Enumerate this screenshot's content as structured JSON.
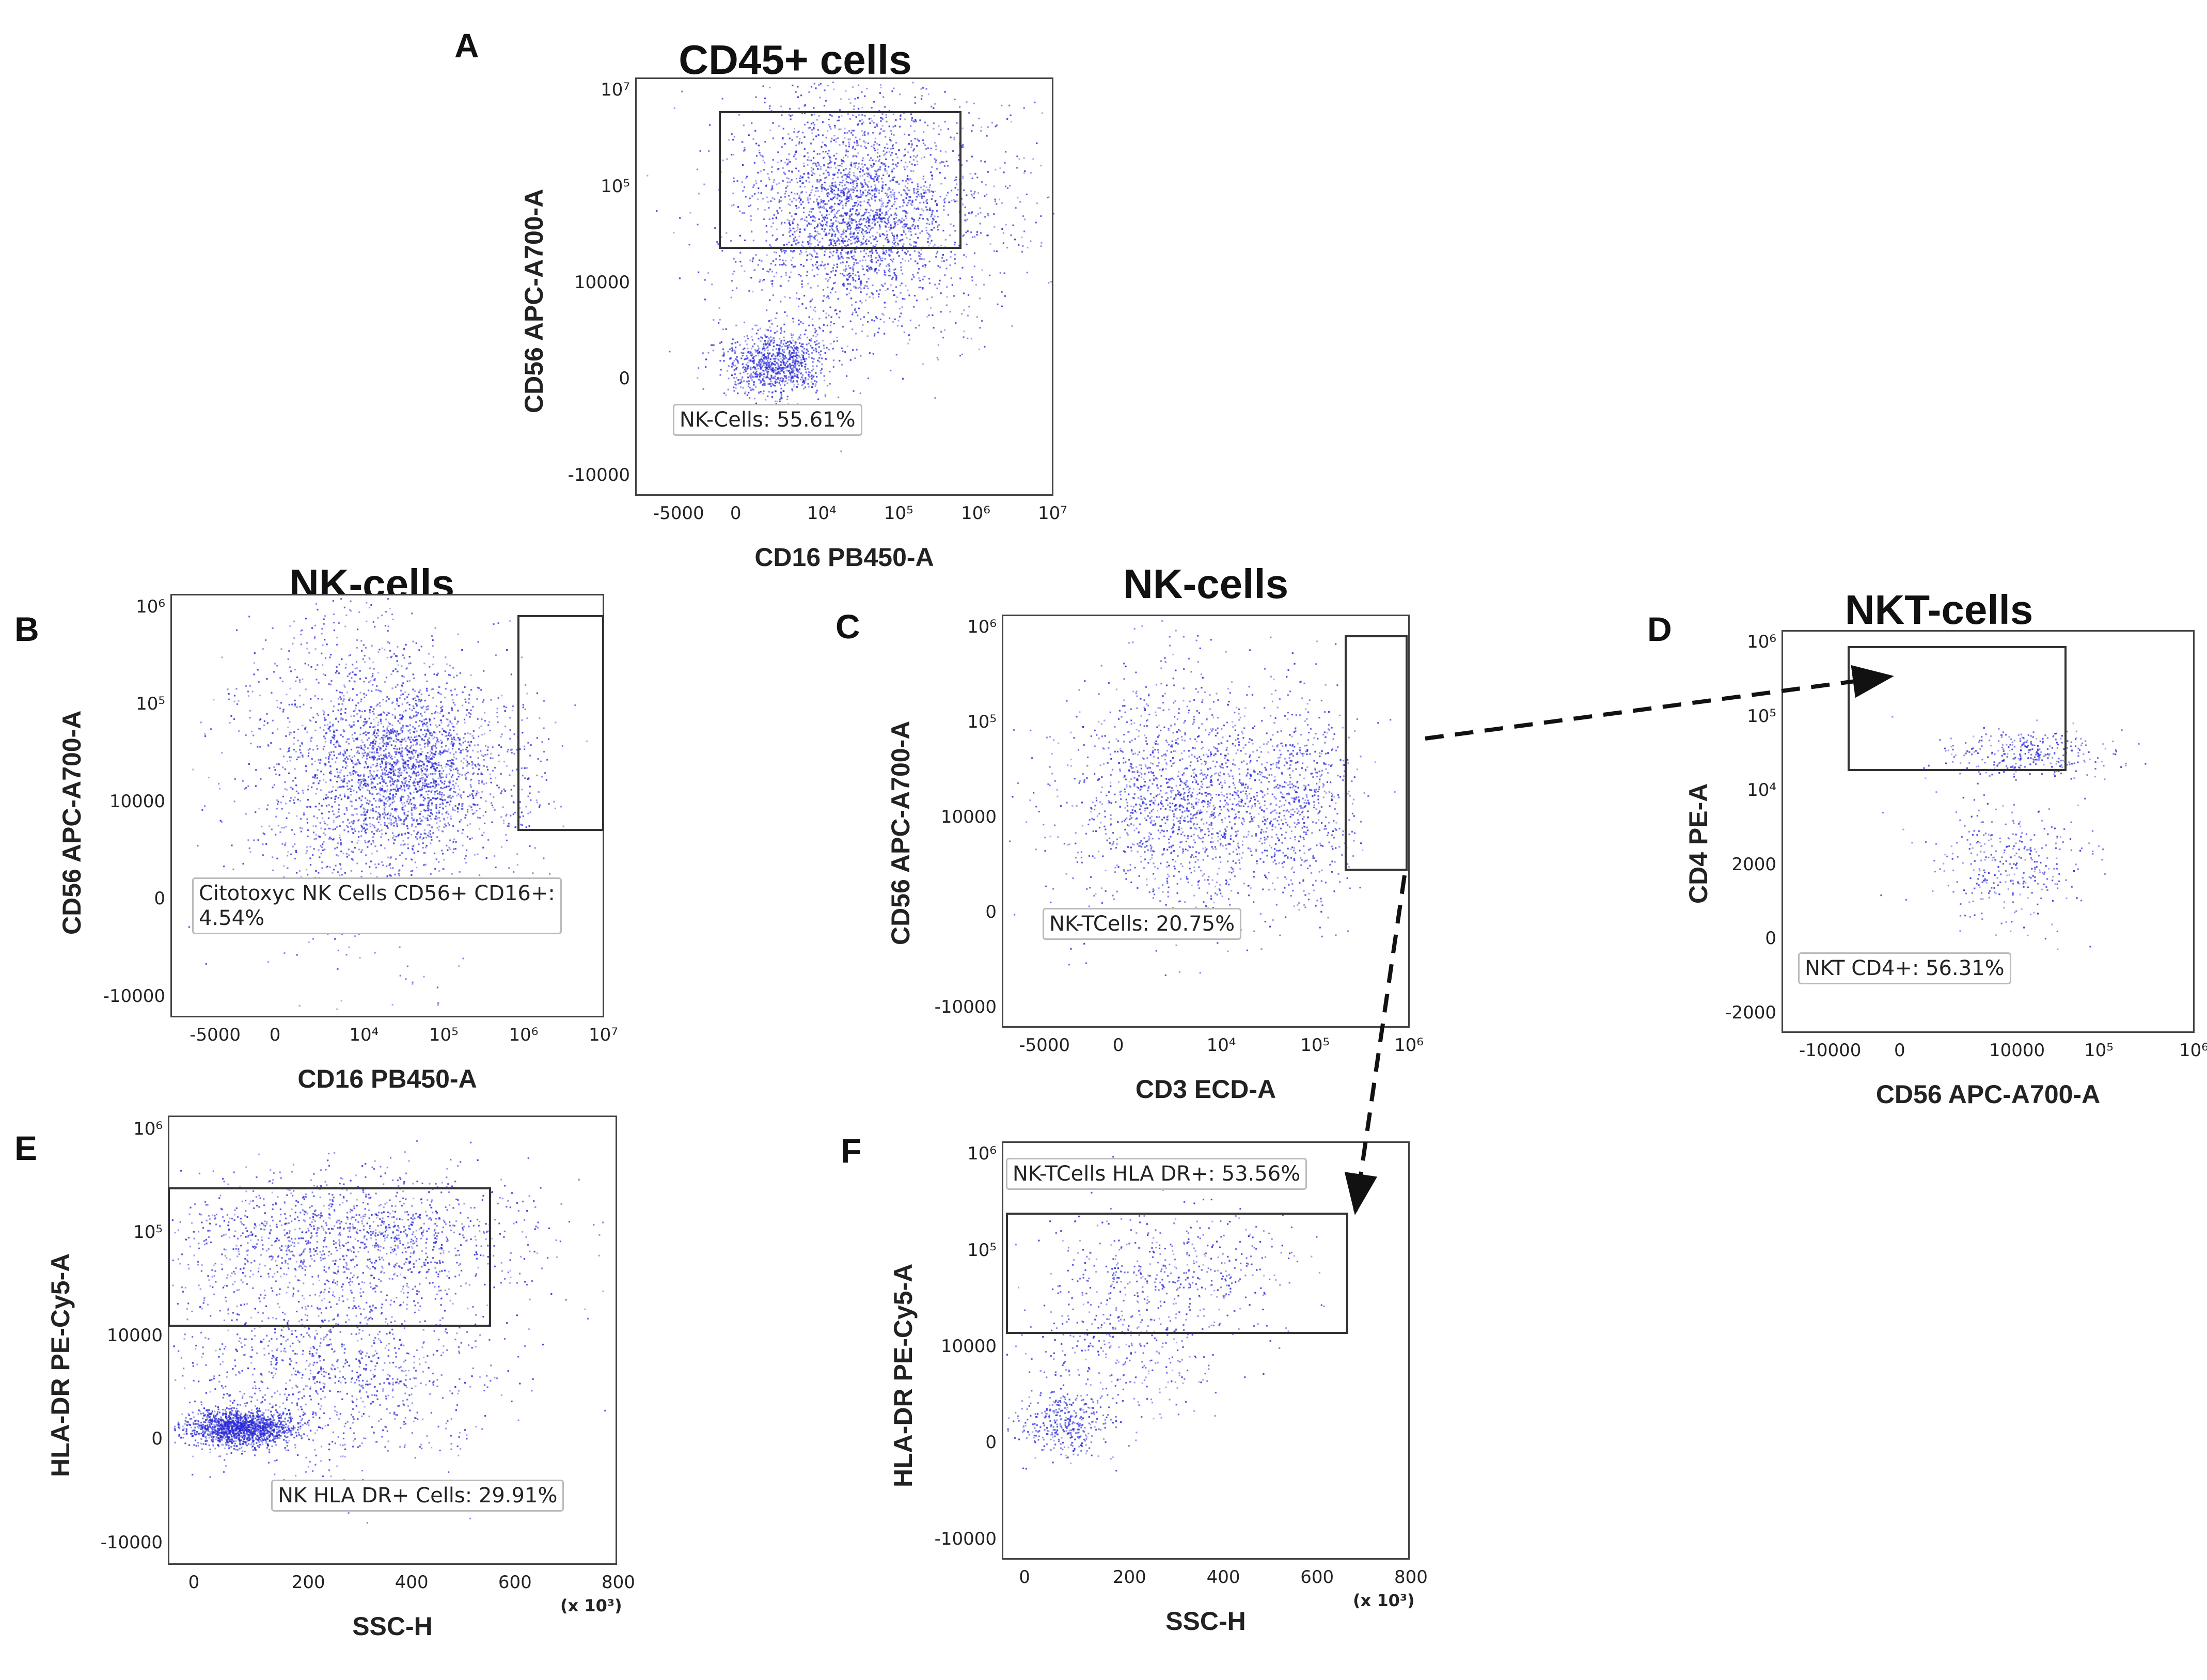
{
  "figure": {
    "panels": [
      {
        "letter": "A",
        "title": "CD45+ cells"
      },
      {
        "letter": "B",
        "title": "NK-cells"
      },
      {
        "letter": "C",
        "title": "NK-cells"
      },
      {
        "letter": "D",
        "title": "NKT-cells"
      },
      {
        "letter": "E",
        "title": ""
      },
      {
        "letter": "F",
        "title": ""
      }
    ],
    "colors": {
      "dots": "#2a2ad8",
      "gate": "#333333",
      "arrow": "#111111"
    }
  },
  "chart_data": [
    {
      "panel": "A",
      "type": "scatter",
      "title": "CD45+ cells",
      "xlabel": "CD16 PB450-A",
      "ylabel": "CD56 APC-A700-A",
      "xticks": [
        "-5000",
        "0",
        "10⁴",
        "10⁵",
        "10⁶",
        "10⁷"
      ],
      "yticks": [
        "10⁷",
        "10⁵",
        "10000",
        "0",
        "-10000"
      ],
      "gate_label": "NK-Cells: 55.61%",
      "clusters": [
        {
          "x": 0.33,
          "y": 0.68,
          "sx": 0.06,
          "sy": 0.04,
          "n": 900
        },
        {
          "x": 0.55,
          "y": 0.33,
          "sx": 0.1,
          "sy": 0.12,
          "n": 1400
        },
        {
          "x": 0.42,
          "y": 0.3,
          "sx": 0.12,
          "sy": 0.18,
          "n": 900
        },
        {
          "x": 0.68,
          "y": 0.28,
          "sx": 0.18,
          "sy": 0.15,
          "n": 600
        }
      ]
    },
    {
      "panel": "B",
      "type": "scatter",
      "title": "NK-cells",
      "xlabel": "CD16 PB450-A",
      "ylabel": "CD56 APC-A700-A",
      "xticks": [
        "-5000",
        "0",
        "10⁴",
        "10⁵",
        "10⁶",
        "10⁷"
      ],
      "yticks": [
        "10⁶",
        "10⁵",
        "10000",
        "0",
        "-10000"
      ],
      "gate_label": "Citotoxyc NK Cells CD56+ CD16+:\n4.54%",
      "clusters": [
        {
          "x": 0.55,
          "y": 0.42,
          "sx": 0.1,
          "sy": 0.1,
          "n": 1600
        },
        {
          "x": 0.42,
          "y": 0.4,
          "sx": 0.14,
          "sy": 0.2,
          "n": 1400
        },
        {
          "x": 0.8,
          "y": 0.42,
          "sx": 0.05,
          "sy": 0.12,
          "n": 120
        }
      ]
    },
    {
      "panel": "C",
      "type": "scatter",
      "title": "NK-cells",
      "xlabel": "CD3 ECD-A",
      "ylabel": "CD56 APC-A700-A",
      "xticks": [
        "-5000",
        "0",
        "10⁴",
        "10⁵",
        "10⁶"
      ],
      "yticks": [
        "10⁶",
        "10⁵",
        "10000",
        "0",
        "-10000"
      ],
      "gate_label": "NK-TCells: 20.75%",
      "clusters": [
        {
          "x": 0.45,
          "y": 0.44,
          "sx": 0.15,
          "sy": 0.14,
          "n": 1700
        },
        {
          "x": 0.73,
          "y": 0.44,
          "sx": 0.07,
          "sy": 0.12,
          "n": 500
        }
      ]
    },
    {
      "panel": "D",
      "type": "scatter",
      "title": "NKT-cells",
      "xlabel": "CD56 APC-A700-A",
      "ylabel": "CD4 PE-A",
      "xticks": [
        "-10000",
        "0",
        "10000",
        "10⁵",
        "10⁶"
      ],
      "yticks": [
        "10⁶",
        "10⁵",
        "10⁴",
        "2000",
        "0",
        "-2000"
      ],
      "gate_label": "NKT CD4+: 56.31%",
      "clusters": [
        {
          "x": 0.6,
          "y": 0.3,
          "sx": 0.1,
          "sy": 0.03,
          "n": 320
        },
        {
          "x": 0.55,
          "y": 0.58,
          "sx": 0.1,
          "sy": 0.08,
          "n": 330
        }
      ]
    },
    {
      "panel": "E",
      "type": "scatter",
      "xlabel": "SSC-H",
      "ylabel": "HLA-DR PE-Cy5-A",
      "xticks": [
        "0",
        "200",
        "400",
        "600",
        "800"
      ],
      "yticks": [
        "10⁶",
        "10⁵",
        "10000",
        "0",
        "-10000"
      ],
      "x_multiplier": "(x 10³)",
      "gate_label": "NK HLA DR+ Cells: 29.91%",
      "clusters": [
        {
          "x": 0.16,
          "y": 0.69,
          "sx": 0.06,
          "sy": 0.02,
          "n": 1500
        },
        {
          "x": 0.4,
          "y": 0.26,
          "sx": 0.2,
          "sy": 0.07,
          "n": 1300
        },
        {
          "x": 0.35,
          "y": 0.55,
          "sx": 0.18,
          "sy": 0.12,
          "n": 1200
        }
      ]
    },
    {
      "panel": "F",
      "type": "scatter",
      "xlabel": "SSC-H",
      "ylabel": "HLA-DR PE-Cy5-A",
      "xticks": [
        "0",
        "200",
        "400",
        "600",
        "800"
      ],
      "yticks": [
        "10⁶",
        "10⁵",
        "10000",
        "0",
        "-10000"
      ],
      "x_multiplier": "(x 10³)",
      "gate_label": "NK-TCells HLA DR+: 53.56%",
      "clusters": [
        {
          "x": 0.15,
          "y": 0.67,
          "sx": 0.06,
          "sy": 0.04,
          "n": 350
        },
        {
          "x": 0.4,
          "y": 0.3,
          "sx": 0.15,
          "sy": 0.07,
          "n": 450
        },
        {
          "x": 0.28,
          "y": 0.5,
          "sx": 0.12,
          "sy": 0.08,
          "n": 300
        }
      ]
    }
  ]
}
